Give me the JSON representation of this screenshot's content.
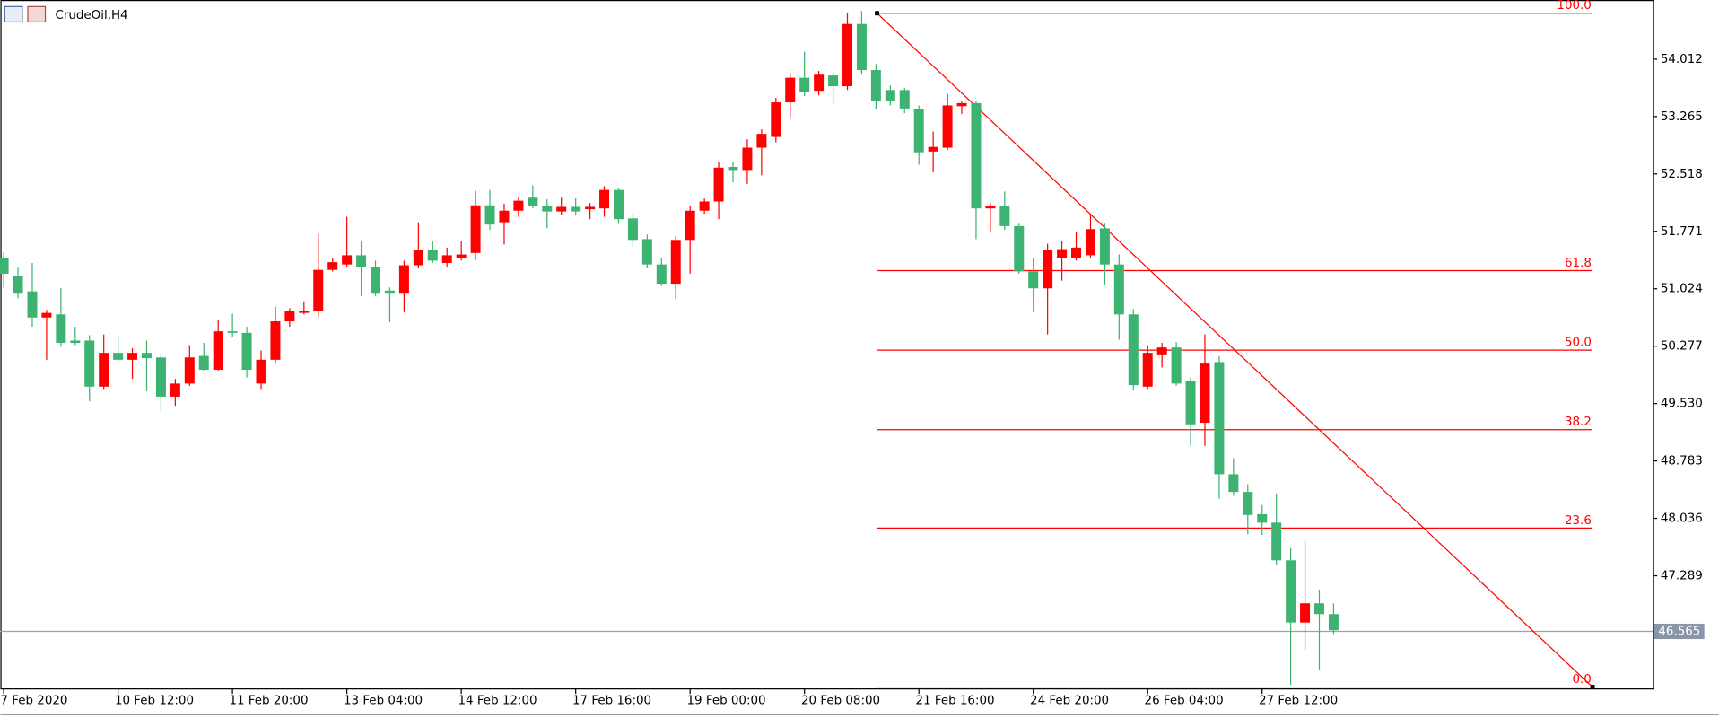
{
  "chart_data": {
    "type": "candlestick",
    "title": "CrudeOil,H4",
    "up_color": "#ff0000",
    "down_color": "#3cb371",
    "categories": [
      "7 Feb 2020",
      null,
      null,
      null,
      null,
      null,
      null,
      null,
      "10 Feb 12:00",
      null,
      null,
      null,
      null,
      null,
      null,
      null,
      "11 Feb 20:00",
      null,
      null,
      null,
      null,
      null,
      null,
      null,
      "13 Feb 04:00",
      null,
      null,
      null,
      null,
      null,
      null,
      null,
      "14 Feb 12:00",
      null,
      null,
      null,
      null,
      null,
      null,
      null,
      "17 Feb 16:00",
      null,
      null,
      null,
      null,
      null,
      null,
      null,
      "19 Feb 00:00",
      null,
      null,
      null,
      null,
      null,
      null,
      null,
      "20 Feb 08:00",
      null,
      null,
      null,
      null,
      null,
      null,
      null,
      "21 Feb 16:00",
      null,
      null,
      null,
      null,
      null,
      null,
      null,
      "24 Feb 20:00",
      null,
      null,
      null,
      null,
      null,
      null,
      null,
      "26 Feb 04:00",
      null,
      null,
      null,
      null,
      null,
      null,
      null,
      "27 Feb 12:00",
      null,
      null,
      null,
      null,
      null
    ],
    "open": [
      51.42,
      51.19,
      50.99,
      50.65,
      50.69,
      50.35,
      50.35,
      49.75,
      50.19,
      50.1,
      50.19,
      50.13,
      49.62,
      49.79,
      50.15,
      49.97,
      50.47,
      50.45,
      49.79,
      50.1,
      50.6,
      50.71,
      50.74,
      51.27,
      51.34,
      51.46,
      51.31,
      51.0,
      50.96,
      51.33,
      51.53,
      51.36,
      51.42,
      51.49,
      52.11,
      51.89,
      52.04,
      52.21,
      52.1,
      52.03,
      52.09,
      52.06,
      52.07,
      52.31,
      51.94,
      51.67,
      51.34,
      51.09,
      51.66,
      52.04,
      52.16,
      52.61,
      52.57,
      52.86,
      53.0,
      53.45,
      53.77,
      53.6,
      53.8,
      53.66,
      54.47,
      53.87,
      53.61,
      53.61,
      53.36,
      52.81,
      52.86,
      53.4,
      53.44,
      52.07,
      52.1,
      51.84,
      51.25,
      51.03,
      51.43,
      51.43,
      51.46,
      51.81,
      51.34,
      50.69,
      49.75,
      50.17,
      50.26,
      49.82,
      49.28,
      50.07,
      48.61,
      48.38,
      48.09,
      47.98,
      47.49,
      46.68,
      46.93,
      46.79
    ],
    "high": [
      51.5,
      51.3,
      51.36,
      50.75,
      51.03,
      50.53,
      50.42,
      50.43,
      50.39,
      50.25,
      50.35,
      50.19,
      49.85,
      50.29,
      50.32,
      50.62,
      50.7,
      50.53,
      50.22,
      50.79,
      50.77,
      50.86,
      51.74,
      51.43,
      51.96,
      51.64,
      51.39,
      51.04,
      51.39,
      51.89,
      51.64,
      51.56,
      51.64,
      52.3,
      52.31,
      52.13,
      52.21,
      52.37,
      52.19,
      52.21,
      52.2,
      52.14,
      52.36,
      52.33,
      52.0,
      51.73,
      51.42,
      51.71,
      52.11,
      52.2,
      52.67,
      52.67,
      52.97,
      53.1,
      53.51,
      53.83,
      54.11,
      53.86,
      53.86,
      54.61,
      54.64,
      53.95,
      53.67,
      53.64,
      53.41,
      53.07,
      53.56,
      53.47,
      53.47,
      52.14,
      52.29,
      51.87,
      51.43,
      51.61,
      51.64,
      51.76,
      52.0,
      51.87,
      51.47,
      50.76,
      50.29,
      50.32,
      50.33,
      49.87,
      50.43,
      50.15,
      48.82,
      48.48,
      48.21,
      48.36,
      47.65,
      47.75,
      47.11,
      46.93
    ],
    "low": [
      51.04,
      50.9,
      50.53,
      50.1,
      50.27,
      50.29,
      49.56,
      49.72,
      50.07,
      49.85,
      49.69,
      49.43,
      49.5,
      49.76,
      49.96,
      49.96,
      50.39,
      49.87,
      49.72,
      50.05,
      50.53,
      50.69,
      50.65,
      51.25,
      51.31,
      50.93,
      50.93,
      50.59,
      50.72,
      51.29,
      51.36,
      51.31,
      51.39,
      51.39,
      51.79,
      51.6,
      51.96,
      52.07,
      51.81,
      51.99,
      51.99,
      51.93,
      51.96,
      51.87,
      51.57,
      51.29,
      51.06,
      50.89,
      51.22,
      52.0,
      51.93,
      52.41,
      52.39,
      52.5,
      52.93,
      53.24,
      53.53,
      53.54,
      53.43,
      53.61,
      53.81,
      53.36,
      53.41,
      53.31,
      52.64,
      52.54,
      52.83,
      53.3,
      51.67,
      51.76,
      51.79,
      51.22,
      50.72,
      50.43,
      51.13,
      51.39,
      51.43,
      51.07,
      50.36,
      49.7,
      49.72,
      50.0,
      49.76,
      48.98,
      48.98,
      48.29,
      48.33,
      47.83,
      47.82,
      47.43,
      45.87,
      46.32,
      46.07,
      46.53
    ],
    "close": [
      51.22,
      50.96,
      50.65,
      50.71,
      50.32,
      50.32,
      49.75,
      50.19,
      50.1,
      50.19,
      50.12,
      49.62,
      49.79,
      50.13,
      49.97,
      50.47,
      50.45,
      49.97,
      50.1,
      50.6,
      50.74,
      50.74,
      51.27,
      51.37,
      51.46,
      51.31,
      50.96,
      50.96,
      51.33,
      51.53,
      51.39,
      51.46,
      51.47,
      52.11,
      51.86,
      52.04,
      52.17,
      52.1,
      52.03,
      52.09,
      52.03,
      52.09,
      52.31,
      51.93,
      51.66,
      51.34,
      51.09,
      51.66,
      52.04,
      52.16,
      52.6,
      52.57,
      52.86,
      53.04,
      53.45,
      53.77,
      53.58,
      53.81,
      53.66,
      54.47,
      53.87,
      53.47,
      53.47,
      53.37,
      52.8,
      52.87,
      53.41,
      53.44,
      52.07,
      52.1,
      51.84,
      51.25,
      51.03,
      51.53,
      51.54,
      51.56,
      51.8,
      51.34,
      50.69,
      49.77,
      50.19,
      50.26,
      49.79,
      49.26,
      50.05,
      48.61,
      48.38,
      48.08,
      47.98,
      47.49,
      46.68,
      46.93,
      46.79,
      46.58
    ],
    "ylim": [
      45.823,
      54.782
    ],
    "yticks": [
      54.012,
      53.265,
      52.518,
      51.771,
      51.024,
      50.277,
      {
        "value": 49.53,
        "label": "49.530"
      },
      48.783,
      48.036,
      47.289
    ],
    "last_price": 46.565,
    "fibonacci": {
      "high": 54.61,
      "low": 45.84,
      "color": "#ff0000",
      "levels": [
        {
          "value": 100,
          "label": "100.0"
        },
        61.8,
        {
          "value": 50,
          "label": "50.0"
        },
        38.2,
        23.6,
        {
          "value": 0,
          "label": "0.0"
        }
      ]
    }
  }
}
